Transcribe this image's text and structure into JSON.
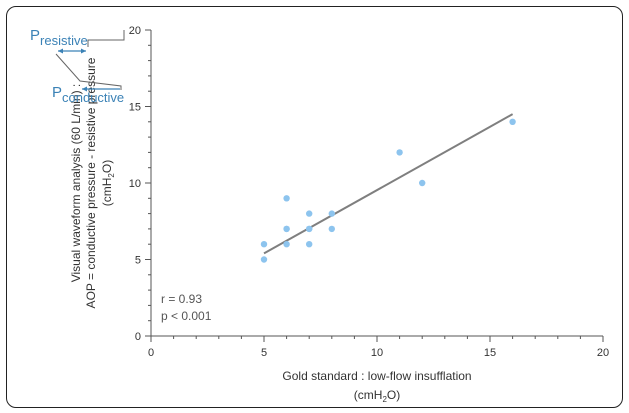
{
  "chart_data": {
    "type": "scatter",
    "x": [
      5,
      5,
      6,
      6,
      6,
      6,
      7,
      7,
      7,
      7,
      8,
      8,
      11,
      12,
      16
    ],
    "y": [
      5,
      6,
      6,
      7,
      7,
      9,
      6,
      7,
      7,
      8,
      7,
      8,
      12,
      10,
      14
    ],
    "regression_line": {
      "x": [
        5,
        16
      ],
      "y": [
        5.4,
        14.5
      ]
    },
    "xlim": [
      0,
      20
    ],
    "ylim": [
      0,
      20
    ],
    "x_ticks": [
      "0",
      "5",
      "10",
      "15",
      "20"
    ],
    "y_ticks": [
      "0",
      "5",
      "10",
      "15",
      "20"
    ],
    "xlabel_line1": "Gold standard : low-flow insufflation",
    "xlabel_line2": "(cmH",
    "xlabel_sub": "2",
    "xlabel_end": "O)",
    "ylabel_line1": "Visual waveform analysis (60 L/min) :",
    "ylabel_line2": "AOP = conductive pressure - resistive pressure",
    "ylabel_line3": "(cmH",
    "ylabel_sub": "2",
    "ylabel_end": "O)",
    "annotation_r": "r = 0.93",
    "annotation_p": "p < 0.001",
    "point_color": "#8dc4ee",
    "line_color": "#7f7f7f",
    "grid": false
  },
  "diagram": {
    "resistive_main": "P",
    "resistive_sub": "resistive",
    "conductive_main": "P",
    "conductive_sub": "conductive",
    "color": "#3b82b6"
  }
}
